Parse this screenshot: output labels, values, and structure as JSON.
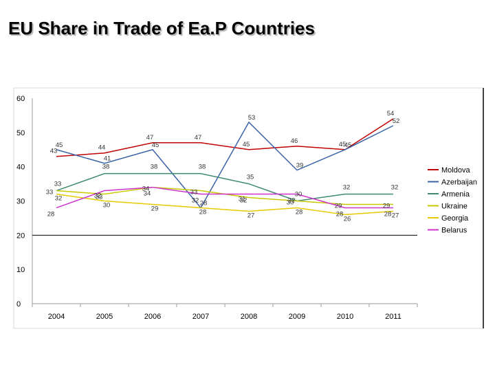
{
  "title": "EU Share in Trade of Ea.P Countries",
  "chart_data": {
    "type": "line",
    "title": "EU Share in Trade of Ea.P Countries",
    "xlabel": "",
    "ylabel": "",
    "x": [
      "2004",
      "2005",
      "2006",
      "2007",
      "2008",
      "2009",
      "2010",
      "2011"
    ],
    "y_ticks": [
      "0",
      "10",
      "20",
      "30",
      "40",
      "50",
      "60"
    ],
    "ylim": [
      0,
      60
    ],
    "grid": false,
    "legend_position": "right",
    "series": [
      {
        "name": "Moldova",
        "color": "#c00000",
        "values": [
          43,
          44,
          47,
          47,
          45,
          46,
          45,
          54
        ],
        "labels": [
          "43",
          "44",
          "47",
          "47",
          "45",
          "46",
          "45",
          "54"
        ]
      },
      {
        "name": "Azerbaijan",
        "color": "#3a62a8",
        "values": [
          45,
          41,
          45,
          28,
          53,
          39,
          45,
          52
        ],
        "labels": [
          "45",
          "41",
          "45",
          "28",
          "53",
          "39",
          "45",
          "52"
        ]
      },
      {
        "name": "Armenia",
        "color": "#3f8a6e",
        "values": [
          33,
          38,
          38,
          38,
          35,
          30,
          32,
          32
        ],
        "labels": [
          "33",
          "38",
          "38",
          "38",
          "35",
          "30",
          "32",
          "32"
        ]
      },
      {
        "name": "Ukraine",
        "color": "#c8c800",
        "values": [
          33,
          32,
          34,
          33,
          31,
          30,
          29,
          29
        ],
        "labels": [
          "33",
          "32",
          "34",
          "33",
          "31",
          "30",
          "29",
          "29"
        ]
      },
      {
        "name": "Georgia",
        "color": "#e8c800",
        "values": [
          32,
          30,
          29,
          28,
          27,
          28,
          26,
          27
        ],
        "labels": [
          "32",
          "30",
          "29",
          "28",
          "27",
          "28",
          "26",
          "27"
        ]
      },
      {
        "name": "Belarus",
        "color": "#cc33cc",
        "values": [
          28,
          33,
          34,
          32,
          32,
          32,
          28,
          28
        ],
        "labels": [
          "28",
          "33",
          "34",
          "32",
          "32",
          "32",
          "28",
          "28"
        ]
      }
    ]
  }
}
